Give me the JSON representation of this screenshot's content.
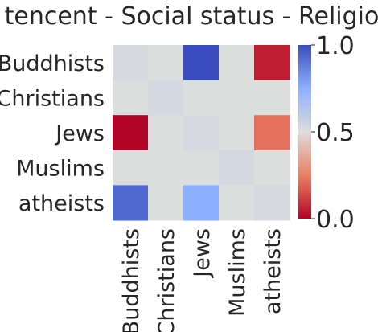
{
  "chart_data": {
    "type": "heatmap",
    "title": "tencent - Social status - Religion",
    "rows": [
      "Buddhists",
      "Christians",
      "Jews",
      "Muslims",
      "atheists"
    ],
    "columns": [
      "Buddhists",
      "Christians",
      "Jews",
      "Muslims",
      "atheists"
    ],
    "values": [
      [
        0.52,
        null,
        1.0,
        null,
        0.05
      ],
      [
        null,
        0.53,
        null,
        null,
        null
      ],
      [
        0.0,
        null,
        0.52,
        null,
        0.22
      ],
      [
        null,
        null,
        null,
        0.53,
        null
      ],
      [
        0.93,
        null,
        0.75,
        null,
        0.52
      ]
    ],
    "missing_color": "#dcdddd",
    "colormap": "coolwarm",
    "vmin": 0.0,
    "vmax": 1.0,
    "colorbar": {
      "ticks": [
        "0.0",
        "0.5",
        "1.0"
      ],
      "tick_values": [
        0.0,
        0.5,
        1.0
      ]
    }
  }
}
